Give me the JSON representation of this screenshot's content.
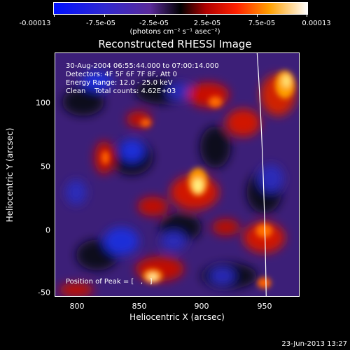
{
  "colorbar": {
    "ticks": [
      "-0.00013",
      "-7.5e-05",
      "-2.5e-05",
      "2.5e-05",
      "7.5e-05",
      "0.00013"
    ],
    "unit": "(photons cm⁻² s⁻¹ asec⁻²)"
  },
  "title": "Reconstructed RHESSI Image",
  "annotation": {
    "line1": "30-Aug-2004 06:55:44.000 to 07:00:14.000",
    "line2": "Detectors: 4F 5F 6F 7F 8F, Att 0",
    "line3": "Energy Range: 12.0 - 25.0 keV",
    "line4": "Clean    Total counts: 4.62E+03",
    "peak": "Position of Peak = [   ,   ]"
  },
  "axes": {
    "xlabel": "Heliocentric X (arcsec)",
    "ylabel": "Heliocentric Y (arcsec)",
    "xticks": [
      "800",
      "850",
      "900",
      "950"
    ],
    "yticks": [
      "100",
      "50",
      "0",
      "-50"
    ]
  },
  "footer": {
    "timestamp": "23-Jun-2013 13:27"
  }
}
